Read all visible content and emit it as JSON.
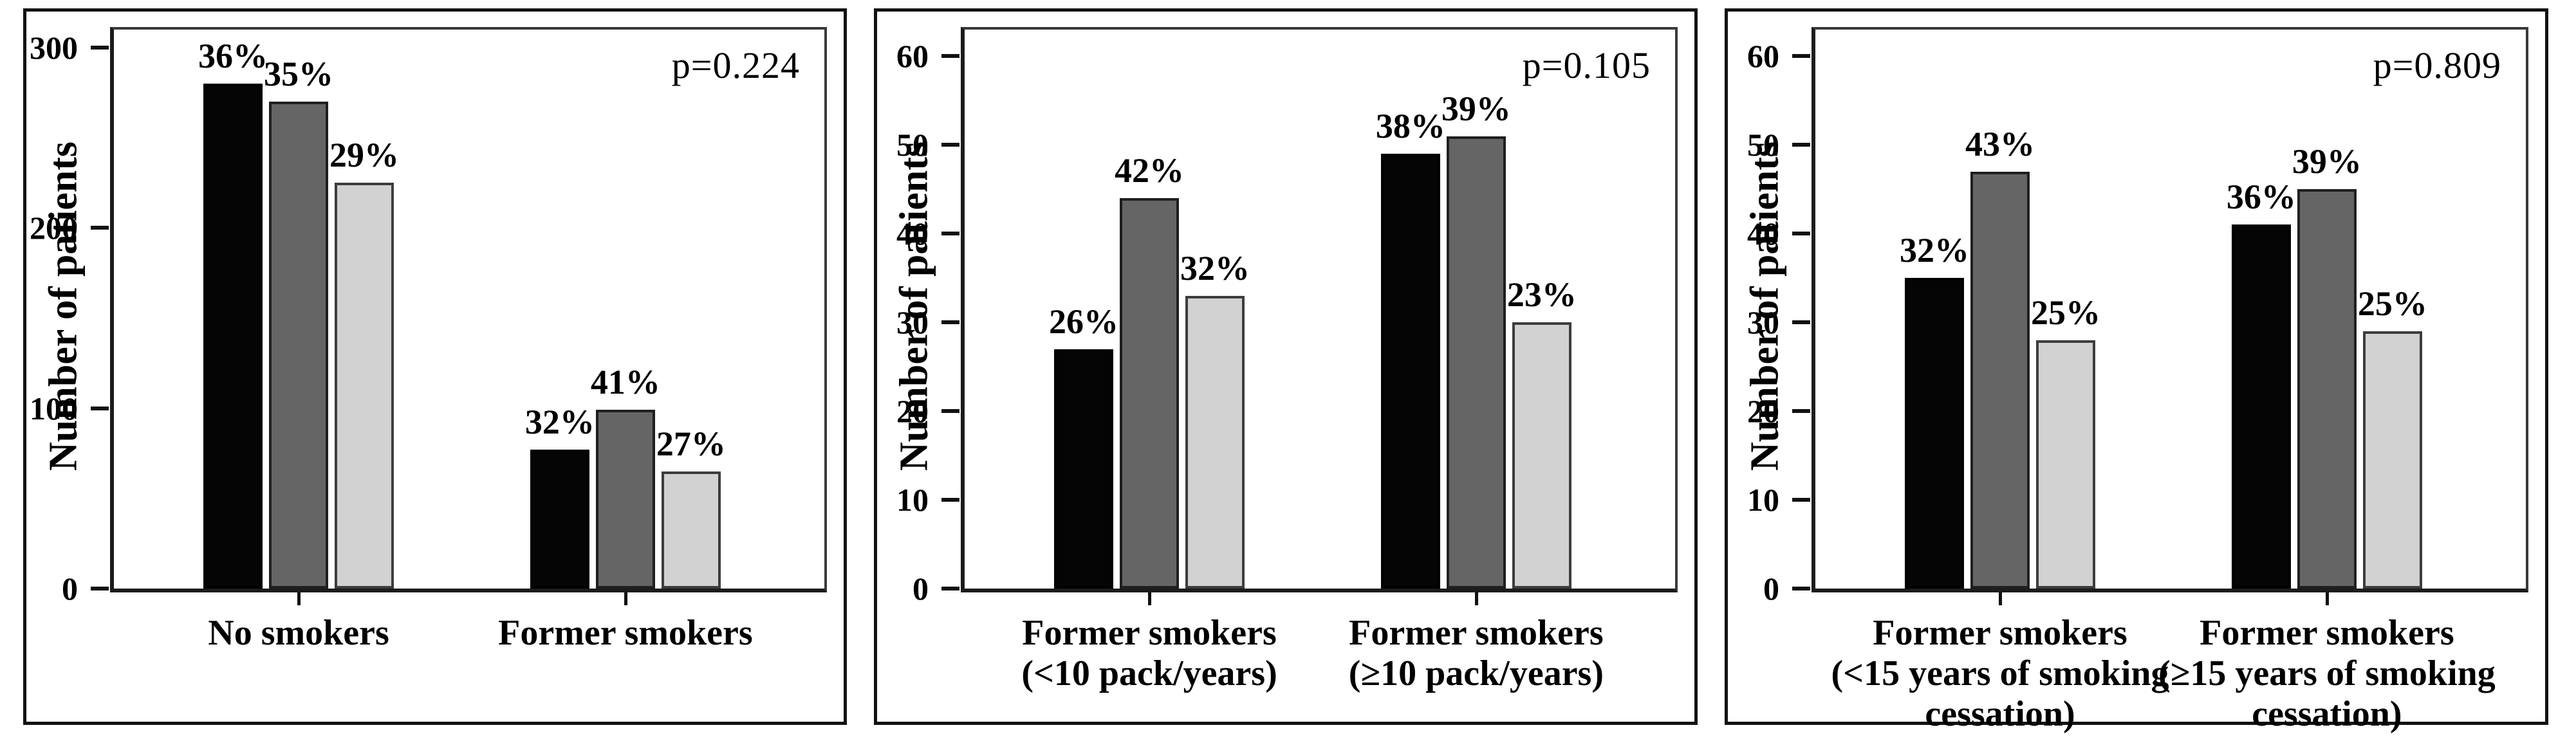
{
  "figure": {
    "y_axis_title": "Number of patients",
    "series_colors": {
      "black": "#050505",
      "dark_gray": "#656565",
      "light_gray": "#d2d2d2"
    }
  },
  "chart_data": [
    {
      "type": "bar",
      "title": "",
      "xlabel": "",
      "ylabel": "Number of patients",
      "ylim": [
        0,
        310
      ],
      "yticks": [
        0,
        100,
        200,
        300
      ],
      "grid": false,
      "legend_position": "none",
      "p_value_label": "p=0.224",
      "categories": [
        "No smokers",
        "Former smokers"
      ],
      "series": [
        {
          "name": "black",
          "color": "#050505",
          "border": "#000000",
          "values": [
            280,
            77
          ],
          "pct_labels": [
            "36%",
            "32%"
          ]
        },
        {
          "name": "dark-gray",
          "color": "#656565",
          "border": "#1f1f1f",
          "values": [
            270,
            99
          ],
          "pct_labels": [
            "35%",
            "41%"
          ]
        },
        {
          "name": "light-gray",
          "color": "#d2d2d2",
          "border": "#3d3d3d",
          "values": [
            225,
            65
          ],
          "pct_labels": [
            "29%",
            "27%"
          ]
        }
      ]
    },
    {
      "type": "bar",
      "title": "",
      "xlabel": "",
      "ylabel": "Number of patients",
      "ylim": [
        0,
        63
      ],
      "yticks": [
        0,
        10,
        20,
        30,
        40,
        50,
        60
      ],
      "grid": false,
      "legend_position": "none",
      "p_value_label": "p=0.105",
      "categories": [
        "Former smokers\n(<10 pack/years)",
        "Former smokers\n(≥10 pack/years)"
      ],
      "series": [
        {
          "name": "black",
          "color": "#050505",
          "border": "#000000",
          "values": [
            27,
            49
          ],
          "pct_labels": [
            "26%",
            "38%"
          ]
        },
        {
          "name": "dark-gray",
          "color": "#656565",
          "border": "#1f1f1f",
          "values": [
            44,
            51
          ],
          "pct_labels": [
            "42%",
            "39%"
          ]
        },
        {
          "name": "light-gray",
          "color": "#d2d2d2",
          "border": "#3d3d3d",
          "values": [
            33,
            30
          ],
          "pct_labels": [
            "32%",
            "23%"
          ]
        }
      ]
    },
    {
      "type": "bar",
      "title": "",
      "xlabel": "",
      "ylabel": "Number of patients",
      "ylim": [
        0,
        63
      ],
      "yticks": [
        0,
        10,
        20,
        30,
        40,
        50,
        60
      ],
      "grid": false,
      "legend_position": "none",
      "p_value_label": "p=0.809",
      "categories": [
        "Former smokers\n(<15 years of smoking\ncessation)",
        "Former smokers\n(≥15 years of smoking\ncessation)"
      ],
      "series": [
        {
          "name": "black",
          "color": "#050505",
          "border": "#000000",
          "values": [
            35,
            41
          ],
          "pct_labels": [
            "32%",
            "36%"
          ]
        },
        {
          "name": "dark-gray",
          "color": "#656565",
          "border": "#1f1f1f",
          "values": [
            47,
            45
          ],
          "pct_labels": [
            "43%",
            "39%"
          ]
        },
        {
          "name": "light-gray",
          "color": "#d2d2d2",
          "border": "#3d3d3d",
          "values": [
            28,
            29
          ],
          "pct_labels": [
            "25%",
            "25%"
          ]
        }
      ]
    }
  ]
}
